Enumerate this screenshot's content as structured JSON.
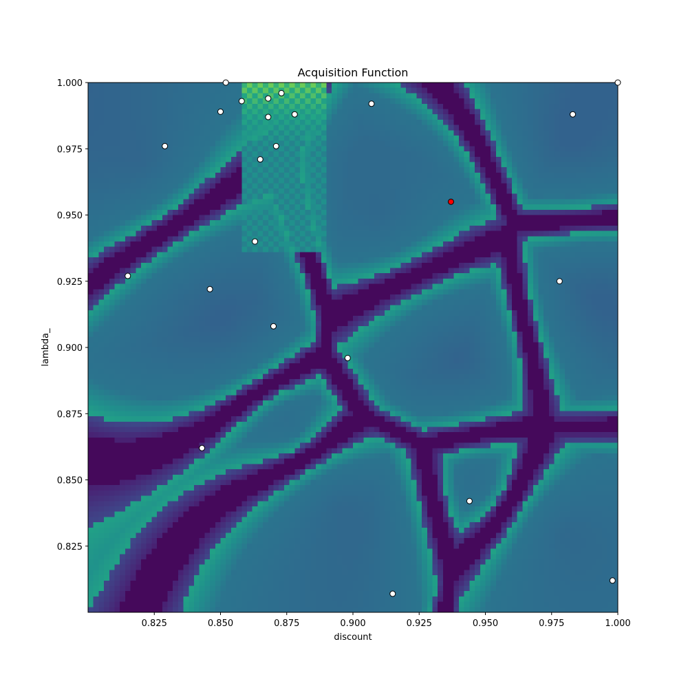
{
  "chart_data": {
    "type": "heatmap",
    "title": "Acquisition Function",
    "xlabel": "discount",
    "ylabel": "lambda_",
    "xlim": [
      0.8,
      1.0
    ],
    "ylim": [
      0.8,
      1.0
    ],
    "x_ticks": [
      0.825,
      0.85,
      0.875,
      0.9,
      0.925,
      0.95,
      0.975,
      1.0
    ],
    "y_ticks": [
      0.825,
      0.85,
      0.875,
      0.9,
      0.925,
      0.95,
      0.975,
      1.0
    ],
    "x_tick_labels": [
      "0.825",
      "0.850",
      "0.875",
      "0.900",
      "0.925",
      "0.950",
      "0.975",
      "1.000"
    ],
    "y_tick_labels": [
      "0.825",
      "0.850",
      "0.875",
      "0.900",
      "0.925",
      "0.950",
      "0.975",
      "1.000"
    ],
    "colormap": "viridis",
    "grid": false,
    "legend": "none",
    "observed_points": [
      {
        "x": 0.852,
        "y": 1.0
      },
      {
        "x": 0.873,
        "y": 0.996
      },
      {
        "x": 0.868,
        "y": 0.994
      },
      {
        "x": 0.858,
        "y": 0.993
      },
      {
        "x": 0.907,
        "y": 0.992
      },
      {
        "x": 0.85,
        "y": 0.989
      },
      {
        "x": 0.878,
        "y": 0.988
      },
      {
        "x": 0.868,
        "y": 0.987
      },
      {
        "x": 0.983,
        "y": 0.988
      },
      {
        "x": 0.829,
        "y": 0.976
      },
      {
        "x": 0.871,
        "y": 0.976
      },
      {
        "x": 0.865,
        "y": 0.971
      },
      {
        "x": 0.863,
        "y": 0.94
      },
      {
        "x": 0.815,
        "y": 0.927
      },
      {
        "x": 0.846,
        "y": 0.922
      },
      {
        "x": 0.978,
        "y": 0.925
      },
      {
        "x": 0.87,
        "y": 0.908
      },
      {
        "x": 0.898,
        "y": 0.896
      },
      {
        "x": 0.843,
        "y": 0.862
      },
      {
        "x": 0.944,
        "y": 0.842
      },
      {
        "x": 0.915,
        "y": 0.807
      },
      {
        "x": 0.998,
        "y": 0.812
      },
      {
        "x": 1.0,
        "y": 1.0
      }
    ],
    "next_point": {
      "x": 0.937,
      "y": 0.955
    },
    "colors": {
      "observed_fill": "#ffffff",
      "next_fill": "#ff0000",
      "marker_edge": "#000000"
    }
  }
}
